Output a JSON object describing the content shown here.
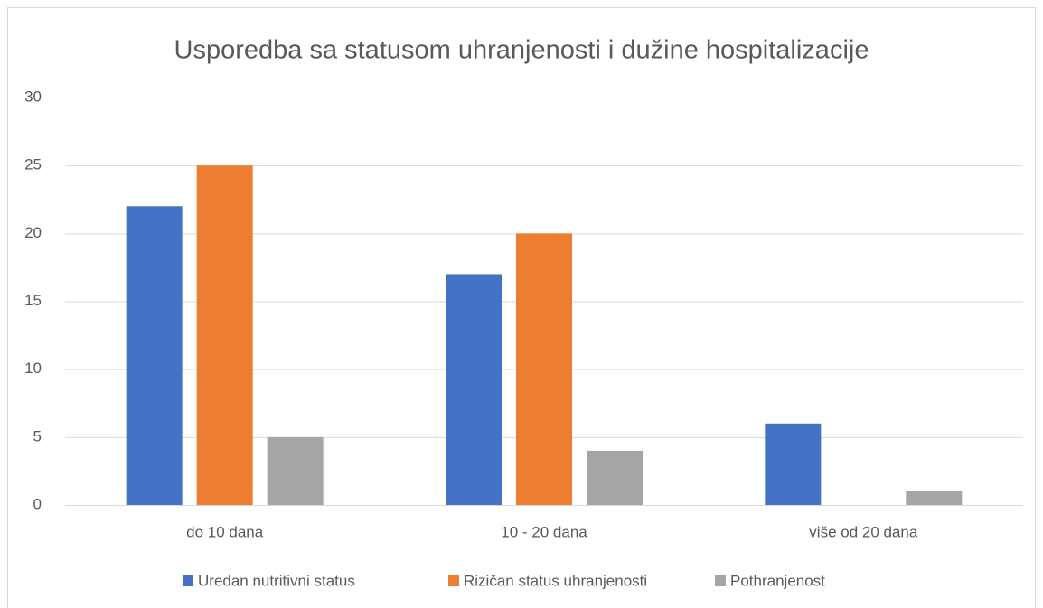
{
  "chart_data": {
    "type": "bar",
    "title": "Usporedba sa statusom uhranjenosti i dužine hospitalizacije",
    "categories": [
      "do 10 dana",
      "10 - 20 dana",
      "više od 20 dana"
    ],
    "series": [
      {
        "name": "Uredan nutritivni status",
        "color": "#4472c4",
        "values": [
          22,
          17,
          6
        ]
      },
      {
        "name": "Rizičan status uhranjenosti",
        "color": "#ed7d31",
        "values": [
          25,
          20,
          0
        ]
      },
      {
        "name": "Pothranjenost",
        "color": "#a5a5a5",
        "values": [
          5,
          4,
          1
        ]
      }
    ],
    "ylim": [
      0,
      30
    ],
    "yticks": [
      0,
      5,
      10,
      15,
      20,
      25,
      30
    ],
    "grid": true,
    "legend": "bottom"
  }
}
